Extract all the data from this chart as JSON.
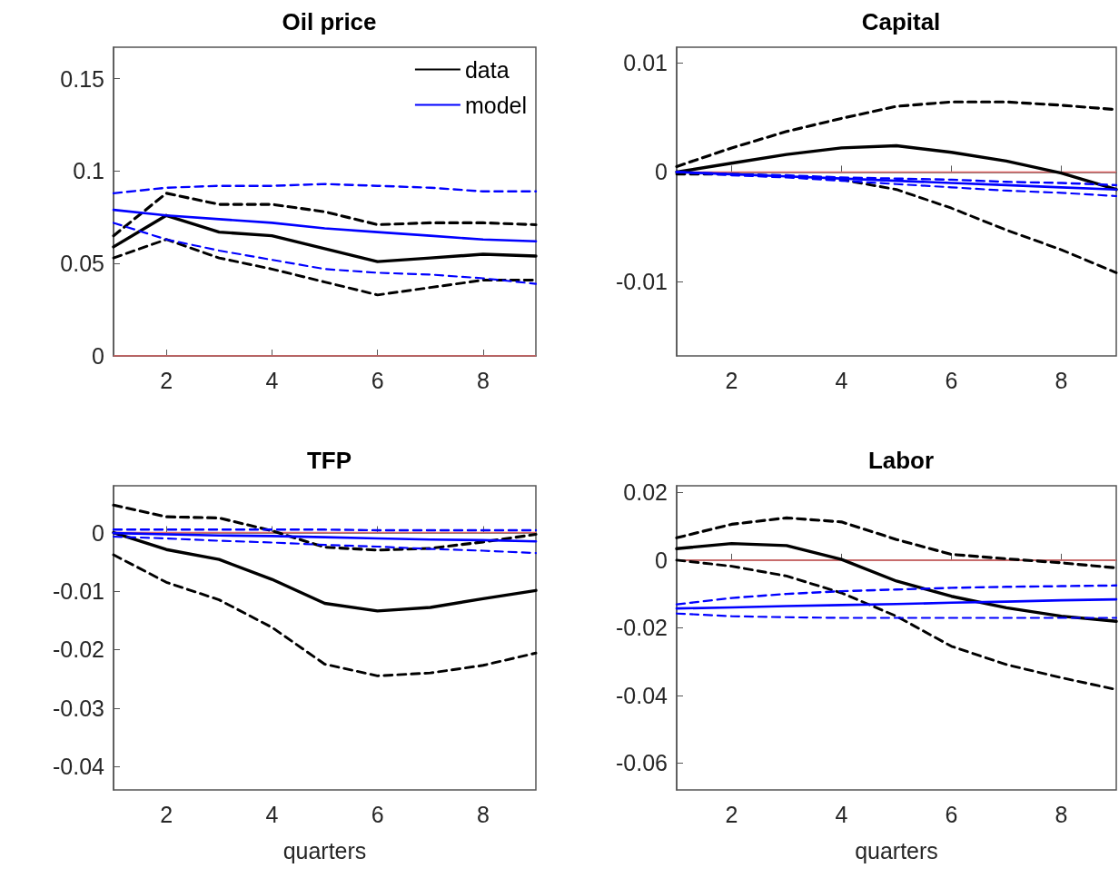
{
  "chart_data": [
    {
      "type": "line",
      "title": "Oil price",
      "x": [
        1,
        2,
        3,
        4,
        5,
        6,
        7,
        8,
        9
      ],
      "xlim": [
        1,
        9
      ],
      "xticks": [
        2,
        4,
        6,
        8
      ],
      "ylim": [
        0,
        0.167
      ],
      "yticks": [
        0,
        0.05,
        0.1,
        0.15
      ],
      "grid": false,
      "legend": "top right",
      "marker": "none",
      "ref_lines": [
        {
          "axis": "y",
          "value": 0,
          "color": "#e06666"
        }
      ],
      "series": [
        {
          "name": "data",
          "color": "#000000",
          "line_style": "solid",
          "values": [
            0.059,
            0.076,
            0.067,
            0.065,
            0.058,
            0.051,
            0.053,
            0.055,
            0.054
          ]
        },
        {
          "color": "#000000",
          "line_style": "dashed",
          "values": [
            0.065,
            0.088,
            0.082,
            0.082,
            0.078,
            0.071,
            0.072,
            0.072,
            0.071
          ]
        },
        {
          "color": "#000000",
          "line_style": "dashed",
          "values": [
            0.053,
            0.063,
            0.053,
            0.047,
            0.04,
            0.033,
            0.037,
            0.041,
            0.041
          ]
        },
        {
          "name": "model",
          "color": "#0000ff",
          "line_style": "solid",
          "values": [
            0.079,
            0.076,
            0.074,
            0.072,
            0.069,
            0.067,
            0.065,
            0.063,
            0.062
          ]
        },
        {
          "color": "#0000ff",
          "line_style": "dashed",
          "values": [
            0.088,
            0.091,
            0.092,
            0.092,
            0.093,
            0.092,
            0.091,
            0.089,
            0.089
          ]
        },
        {
          "color": "#0000ff",
          "line_style": "dashed",
          "values": [
            0.072,
            0.063,
            0.057,
            0.052,
            0.047,
            0.045,
            0.044,
            0.042,
            0.039
          ]
        }
      ]
    },
    {
      "type": "line",
      "title": "Capital",
      "x": [
        1,
        2,
        3,
        4,
        5,
        6,
        7,
        8,
        9
      ],
      "xlim": [
        1,
        9
      ],
      "xticks": [
        2,
        4,
        6,
        8
      ],
      "ylim": [
        -0.0168,
        0.0114
      ],
      "yticks": [
        -0.01,
        0,
        0.01
      ],
      "grid": false,
      "marker": "none",
      "ref_lines": [
        {
          "axis": "y",
          "value": 0,
          "color": "#e06666"
        }
      ],
      "series": [
        {
          "color": "#000000",
          "line_style": "solid",
          "values": [
            0,
            0.0008,
            0.0016,
            0.0022,
            0.0024,
            0.0018,
            0.001,
            -0.0001,
            -0.0016
          ]
        },
        {
          "color": "#000000",
          "line_style": "dashed",
          "values": [
            0.0005,
            0.0022,
            0.0037,
            0.0049,
            0.006,
            0.0064,
            0.0064,
            0.0061,
            0.0057
          ]
        },
        {
          "color": "#000000",
          "line_style": "dashed",
          "values": [
            -0.0002,
            -0.0002,
            -0.0004,
            -0.0007,
            -0.0016,
            -0.0033,
            -0.0053,
            -0.0071,
            -0.0092
          ]
        },
        {
          "color": "#0000ff",
          "line_style": "solid",
          "values": [
            0,
            -0.0002,
            -0.0004,
            -0.0006,
            -0.0008,
            -0.001,
            -0.0012,
            -0.0014,
            -0.0016
          ]
        },
        {
          "color": "#0000ff",
          "line_style": "dashed",
          "values": [
            0,
            -0.0002,
            -0.0003,
            -0.0005,
            -0.0006,
            -0.0007,
            -0.0009,
            -0.001,
            -0.0012
          ]
        },
        {
          "color": "#0000ff",
          "line_style": "dashed",
          "values": [
            0,
            -0.0003,
            -0.0005,
            -0.0008,
            -0.0011,
            -0.0014,
            -0.0017,
            -0.0019,
            -0.0022
          ]
        }
      ]
    },
    {
      "type": "line",
      "title": "TFP",
      "xlabel": "quarters",
      "x": [
        1,
        2,
        3,
        4,
        5,
        6,
        7,
        8,
        9
      ],
      "xlim": [
        1,
        9
      ],
      "xticks": [
        2,
        4,
        6,
        8
      ],
      "ylim": [
        -0.044,
        0.008
      ],
      "yticks": [
        -0.04,
        -0.03,
        -0.02,
        -0.01,
        0
      ],
      "grid": false,
      "marker": "none",
      "ref_lines": [
        {
          "axis": "y",
          "value": 0,
          "color": "#e06666"
        }
      ],
      "series": [
        {
          "color": "#000000",
          "line_style": "solid",
          "values": [
            0,
            -0.0029,
            -0.0046,
            -0.008,
            -0.0121,
            -0.0134,
            -0.0128,
            -0.0113,
            -0.0099
          ]
        },
        {
          "color": "#000000",
          "line_style": "dashed",
          "values": [
            0.0047,
            0.0027,
            0.0025,
            0.0003,
            -0.0025,
            -0.003,
            -0.0027,
            -0.0016,
            -0.0003
          ]
        },
        {
          "color": "#000000",
          "line_style": "dashed",
          "values": [
            -0.0038,
            -0.0085,
            -0.0115,
            -0.0162,
            -0.0225,
            -0.0245,
            -0.024,
            -0.0227,
            -0.0206
          ]
        },
        {
          "color": "#0000ff",
          "line_style": "solid",
          "values": [
            -0.0001,
            -0.0003,
            -0.0005,
            -0.0006,
            -0.0008,
            -0.001,
            -0.0012,
            -0.0013,
            -0.0015
          ]
        },
        {
          "color": "#0000ff",
          "line_style": "dashed",
          "values": [
            0.0005,
            0.0005,
            0.0005,
            0.0005,
            0.0005,
            0.0004,
            0.0004,
            0.0004,
            0.0004
          ]
        },
        {
          "color": "#0000ff",
          "line_style": "dashed",
          "values": [
            -0.0007,
            -0.001,
            -0.0014,
            -0.0017,
            -0.0021,
            -0.0024,
            -0.0028,
            -0.0031,
            -0.0035
          ]
        }
      ]
    },
    {
      "type": "line",
      "title": "Labor",
      "xlabel": "quarters",
      "x": [
        1,
        2,
        3,
        4,
        5,
        6,
        7,
        8,
        9
      ],
      "xlim": [
        1,
        9
      ],
      "xticks": [
        2,
        4,
        6,
        8
      ],
      "ylim": [
        -0.068,
        0.022
      ],
      "yticks": [
        -0.06,
        -0.04,
        -0.02,
        0,
        0.02
      ],
      "grid": false,
      "marker": "none",
      "ref_lines": [
        {
          "axis": "y",
          "value": 0,
          "color": "#e06666"
        }
      ],
      "series": [
        {
          "color": "#000000",
          "line_style": "solid",
          "values": [
            0.0034,
            0.0049,
            0.0043,
            0.0002,
            -0.0062,
            -0.0107,
            -0.0141,
            -0.0166,
            -0.0181
          ]
        },
        {
          "color": "#000000",
          "line_style": "dashed",
          "values": [
            0.0066,
            0.0106,
            0.0125,
            0.0113,
            0.0061,
            0.0017,
            0.0004,
            -0.0008,
            -0.0023
          ]
        },
        {
          "color": "#000000",
          "line_style": "dashed",
          "values": [
            0,
            -0.0018,
            -0.0047,
            -0.0097,
            -0.0166,
            -0.0255,
            -0.0309,
            -0.0348,
            -0.0383
          ]
        },
        {
          "color": "#0000ff",
          "line_style": "solid",
          "values": [
            -0.0143,
            -0.014,
            -0.0136,
            -0.0133,
            -0.013,
            -0.0126,
            -0.0123,
            -0.0119,
            -0.0116
          ]
        },
        {
          "color": "#0000ff",
          "line_style": "dashed",
          "values": [
            -0.0131,
            -0.0112,
            -0.01,
            -0.0092,
            -0.0087,
            -0.0082,
            -0.0079,
            -0.0077,
            -0.0075
          ]
        },
        {
          "color": "#0000ff",
          "line_style": "dashed",
          "values": [
            -0.0158,
            -0.0166,
            -0.0169,
            -0.0171,
            -0.0171,
            -0.0171,
            -0.0171,
            -0.0171,
            -0.0171
          ]
        }
      ]
    }
  ]
}
